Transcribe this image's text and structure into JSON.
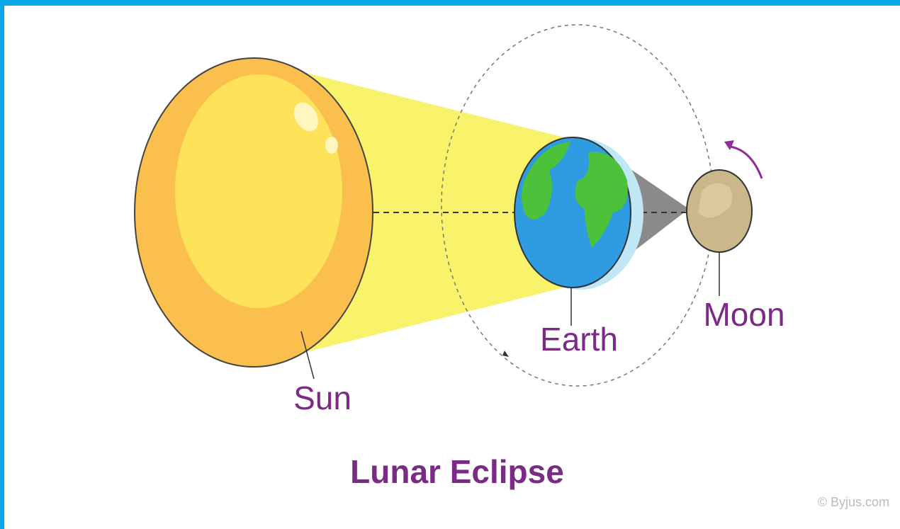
{
  "nodes": [
    {
      "label": "Sun"
    },
    {
      "label": "Earth"
    },
    {
      "label": "Moon"
    }
  ],
  "title": "Lunar Eclipse",
  "credit": "© Byjus.com"
}
